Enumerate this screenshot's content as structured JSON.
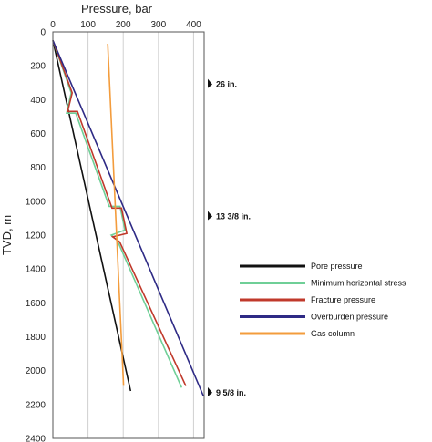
{
  "chart_data": {
    "type": "line",
    "xlabel": "Pressure, bar",
    "ylabel": "TVD, m",
    "x_axis_position": "top",
    "y_inverted": true,
    "xlim": [
      0,
      430
    ],
    "ylim": [
      0,
      2400
    ],
    "x_ticks": [
      "0",
      "100",
      "200",
      "300",
      "400"
    ],
    "y_ticks": [
      "0",
      "200",
      "400",
      "600",
      "800",
      "1000",
      "1200",
      "1400",
      "1600",
      "1800",
      "2000",
      "2200",
      "2400"
    ],
    "grid": "vertical",
    "legend_position": "right",
    "series": [
      {
        "name": "Pore pressure",
        "color": "#111111",
        "points": [
          [
            0,
            50
          ],
          [
            221,
            2120
          ]
        ]
      },
      {
        "name": "Minimum horizontal stress",
        "color": "#6fcf97",
        "points": [
          [
            0,
            50
          ],
          [
            52,
            360
          ],
          [
            39,
            480
          ],
          [
            65,
            480
          ],
          [
            160,
            1030
          ],
          [
            191,
            1030
          ],
          [
            205,
            1170
          ],
          [
            166,
            1200
          ],
          [
            183,
            1230
          ],
          [
            366,
            2100
          ]
        ]
      },
      {
        "name": "Fracture pressure",
        "color": "#c0392b",
        "points": [
          [
            0,
            50
          ],
          [
            55,
            360
          ],
          [
            42,
            470
          ],
          [
            70,
            470
          ],
          [
            168,
            1040
          ],
          [
            195,
            1040
          ],
          [
            210,
            1190
          ],
          [
            170,
            1210
          ],
          [
            190,
            1240
          ],
          [
            378,
            2090
          ]
        ]
      },
      {
        "name": "Overburden pressure",
        "color": "#2e2a85",
        "points": [
          [
            0,
            50
          ],
          [
            428,
            2150
          ]
        ]
      },
      {
        "name": "Gas column",
        "color": "#f39c3c",
        "points": [
          [
            156,
            70
          ],
          [
            201,
            2090
          ]
        ]
      }
    ],
    "annotations": [
      {
        "text": "26 in.",
        "y": 310
      },
      {
        "text": "13 3/8 in.",
        "y": 1090
      },
      {
        "text": "9 5/8 in.",
        "y": 2130
      }
    ]
  }
}
